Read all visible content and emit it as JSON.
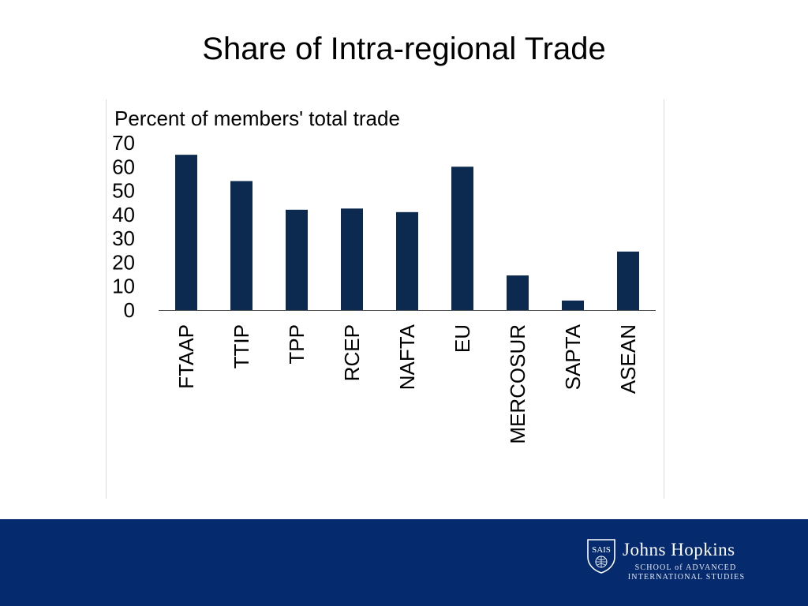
{
  "slide": {
    "title": "Share of Intra-regional Trade"
  },
  "chart_data": {
    "type": "bar",
    "title": "",
    "ylabel": "Percent of members' total trade",
    "xlabel": "",
    "categories": [
      "FTAAP",
      "TTIP",
      "TPP",
      "RCEP",
      "NAFTA",
      "EU",
      "MERCOSUR",
      "SAPTA",
      "ASEAN"
    ],
    "values": [
      65,
      54,
      42,
      42.5,
      41,
      60,
      14.5,
      4,
      24.5
    ],
    "ylim": [
      0,
      70
    ],
    "yticks": [
      "0",
      "10",
      "20",
      "30",
      "40",
      "50",
      "60",
      "70"
    ],
    "grid": false,
    "bar_color": "#0c2a4f"
  },
  "footer": {
    "background_color": "#052a6e",
    "logo": {
      "seal_text": "SAIS",
      "name": "Johns Hopkins",
      "school_line1": "SCHOOL of ADVANCED",
      "school_line2": "INTERNATIONAL STUDIES"
    }
  }
}
